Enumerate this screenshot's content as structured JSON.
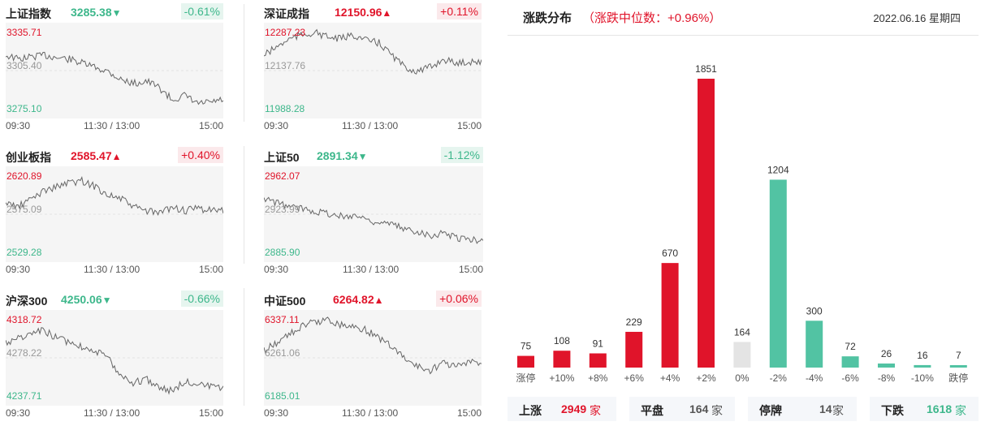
{
  "indices": [
    {
      "name": "上证指数",
      "value": "3285.38",
      "arrow": "▼",
      "pct": "-0.61%",
      "dir": "down",
      "hi": "3335.71",
      "mid": "3305.40",
      "lo": "3275.10",
      "t0": "09:30",
      "t1": "11:30 / 13:00",
      "t2": "15:00"
    },
    {
      "name": "深证成指",
      "value": "12150.96",
      "arrow": "▲",
      "pct": "+0.11%",
      "dir": "up",
      "hi": "12287.23",
      "mid": "12137.76",
      "lo": "11988.28",
      "t0": "09:30",
      "t1": "11:30 / 13:00",
      "t2": "15:00"
    },
    {
      "name": "创业板指",
      "value": "2585.47",
      "arrow": "▲",
      "pct": "+0.40%",
      "dir": "up",
      "hi": "2620.89",
      "mid": "2575.09",
      "lo": "2529.28",
      "t0": "09:30",
      "t1": "11:30 / 13:00",
      "t2": "15:00"
    },
    {
      "name": "上证50",
      "value": "2891.34",
      "arrow": "▼",
      "pct": "-1.12%",
      "dir": "down",
      "hi": "2962.07",
      "mid": "2923.99",
      "lo": "2885.90",
      "t0": "09:30",
      "t1": "11:30 / 13:00",
      "t2": "15:00"
    },
    {
      "name": "沪深300",
      "value": "4250.06",
      "arrow": "▼",
      "pct": "-0.66%",
      "dir": "down",
      "hi": "4318.72",
      "mid": "4278.22",
      "lo": "4237.71",
      "t0": "09:30",
      "t1": "11:30 / 13:00",
      "t2": "15:00"
    },
    {
      "name": "中证500",
      "value": "6264.82",
      "arrow": "▲",
      "pct": "+0.06%",
      "dir": "up",
      "hi": "6337.11",
      "mid": "6261.06",
      "lo": "6185.01",
      "t0": "09:30",
      "t1": "11:30 / 13:00",
      "t2": "15:00"
    }
  ],
  "distribution": {
    "title": "涨跌分布",
    "subtitle": "（涨跌中位数：+0.96%）",
    "date": "2022.06.16 星期四",
    "footer": {
      "up_label": "上涨",
      "up_value": "2949",
      "up_unit": "家",
      "flat_label": "平盘",
      "flat_value": "164",
      "flat_unit": "家",
      "halt_label": "停牌",
      "halt_value": "14",
      "halt_unit": "家",
      "down_label": "下跌",
      "down_value": "1618",
      "down_unit": "家"
    },
    "colors": {
      "up": "#e0142a",
      "flat": "#e4e4e4",
      "down": "#52c3a3"
    }
  },
  "chart_data": {
    "type": "bar",
    "categories": [
      "涨停",
      "+10%",
      "+8%",
      "+6%",
      "+4%",
      "+2%",
      "0%",
      "-2%",
      "-4%",
      "-6%",
      "-8%",
      "-10%",
      "跌停"
    ],
    "values": [
      75,
      108,
      91,
      229,
      670,
      1851,
      164,
      1204,
      300,
      72,
      26,
      16,
      7
    ],
    "groups": [
      "up",
      "up",
      "up",
      "up",
      "up",
      "up",
      "flat",
      "down",
      "down",
      "down",
      "down",
      "down",
      "down"
    ],
    "ylim": [
      0,
      1851
    ]
  }
}
